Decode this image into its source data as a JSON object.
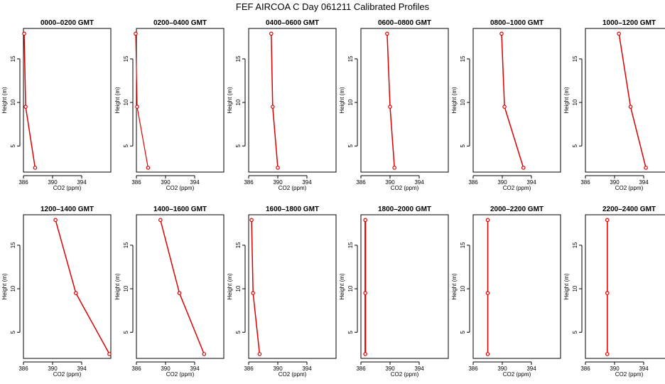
{
  "chart_data": {
    "type": "line",
    "title": "FEF AIRCOA C  Day 061211  Calibrated Profiles",
    "xlabel": "CO2 (ppm)",
    "ylabel": "Height (m)",
    "xlim": [
      386,
      398
    ],
    "ylim": [
      2,
      18.5
    ],
    "xticks": [
      386,
      390,
      394
    ],
    "yticks": [
      5,
      10,
      15
    ],
    "panels": [
      {
        "title": "0000–0200 GMT",
        "heights": [
          17.9,
          9.5,
          2.5
        ],
        "co2": [
          386.1,
          386.3,
          387.6
        ]
      },
      {
        "title": "0200–0400 GMT",
        "heights": [
          17.9,
          9.5,
          2.5
        ],
        "co2": [
          385.9,
          386.1,
          387.6
        ]
      },
      {
        "title": "0400–0600 GMT",
        "heights": [
          17.9,
          9.5,
          2.5
        ],
        "co2": [
          389.1,
          389.3,
          390.0
        ]
      },
      {
        "title": "0600–0800 GMT",
        "heights": [
          17.9,
          9.5,
          2.5
        ],
        "co2": [
          389.6,
          390.0,
          390.6
        ]
      },
      {
        "title": "0800–1000 GMT",
        "heights": [
          17.9,
          9.5,
          2.5
        ],
        "co2": [
          389.9,
          390.3,
          392.9
        ]
      },
      {
        "title": "1000–1200 GMT",
        "heights": [
          17.9,
          9.5,
          2.5
        ],
        "co2": [
          390.6,
          392.2,
          394.3
        ]
      },
      {
        "title": "1200–1400 GMT",
        "heights": [
          17.9,
          9.5,
          2.5
        ],
        "co2": [
          390.4,
          393.2,
          397.8
        ]
      },
      {
        "title": "1400–1600 GMT",
        "heights": [
          17.9,
          9.5,
          2.5
        ],
        "co2": [
          389.3,
          391.9,
          395.3
        ]
      },
      {
        "title": "1600–1800 GMT",
        "heights": [
          17.9,
          9.5,
          2.5
        ],
        "co2": [
          386.4,
          386.6,
          387.5
        ]
      },
      {
        "title": "1800–2000 GMT",
        "heights": [
          17.9,
          9.5,
          2.5
        ],
        "co2": [
          386.6,
          386.6,
          386.6
        ]
      },
      {
        "title": "2000–2200 GMT",
        "heights": [
          17.9,
          9.5,
          2.5
        ],
        "co2": [
          388.0,
          388.0,
          388.0
        ]
      },
      {
        "title": "2200–2400 GMT",
        "heights": [
          17.9,
          9.5,
          2.5
        ],
        "co2": [
          389.0,
          389.0,
          389.0
        ]
      }
    ]
  }
}
